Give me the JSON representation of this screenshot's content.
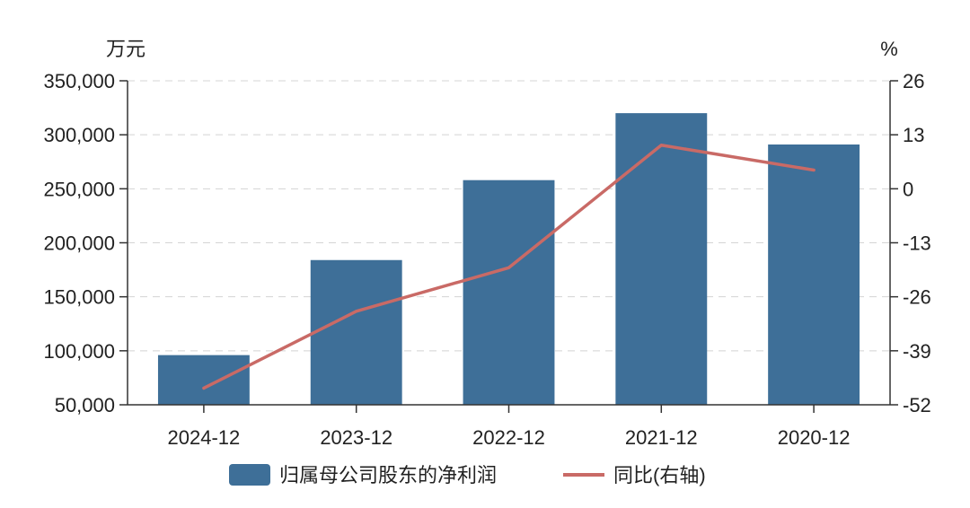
{
  "chart_data": {
    "type": "bar",
    "categories": [
      "2024-12",
      "2023-12",
      "2022-12",
      "2021-12",
      "2020-12"
    ],
    "left_unit": "万元",
    "right_unit": "%",
    "left_ticks": [
      "350,000",
      "300,000",
      "250,000",
      "200,000",
      "150,000",
      "100,000",
      "50,000"
    ],
    "right_ticks": [
      "26",
      "13",
      "0",
      "-13",
      "-26",
      "-39",
      "-52"
    ],
    "ylim_left": [
      50000,
      350000
    ],
    "ylim_right": [
      -52,
      26
    ],
    "grid": true,
    "legend_position": "bottom",
    "series": [
      {
        "name": "归属母公司股东的净利润",
        "type": "bar",
        "axis": "left",
        "color": "#3e6f98",
        "values": [
          96000,
          184000,
          258000,
          320000,
          291000
        ]
      },
      {
        "name": "同比(右轴)",
        "type": "line",
        "axis": "right",
        "color": "#c96a66",
        "values": [
          -48,
          -29.5,
          -19,
          10.5,
          4.5
        ]
      }
    ]
  }
}
